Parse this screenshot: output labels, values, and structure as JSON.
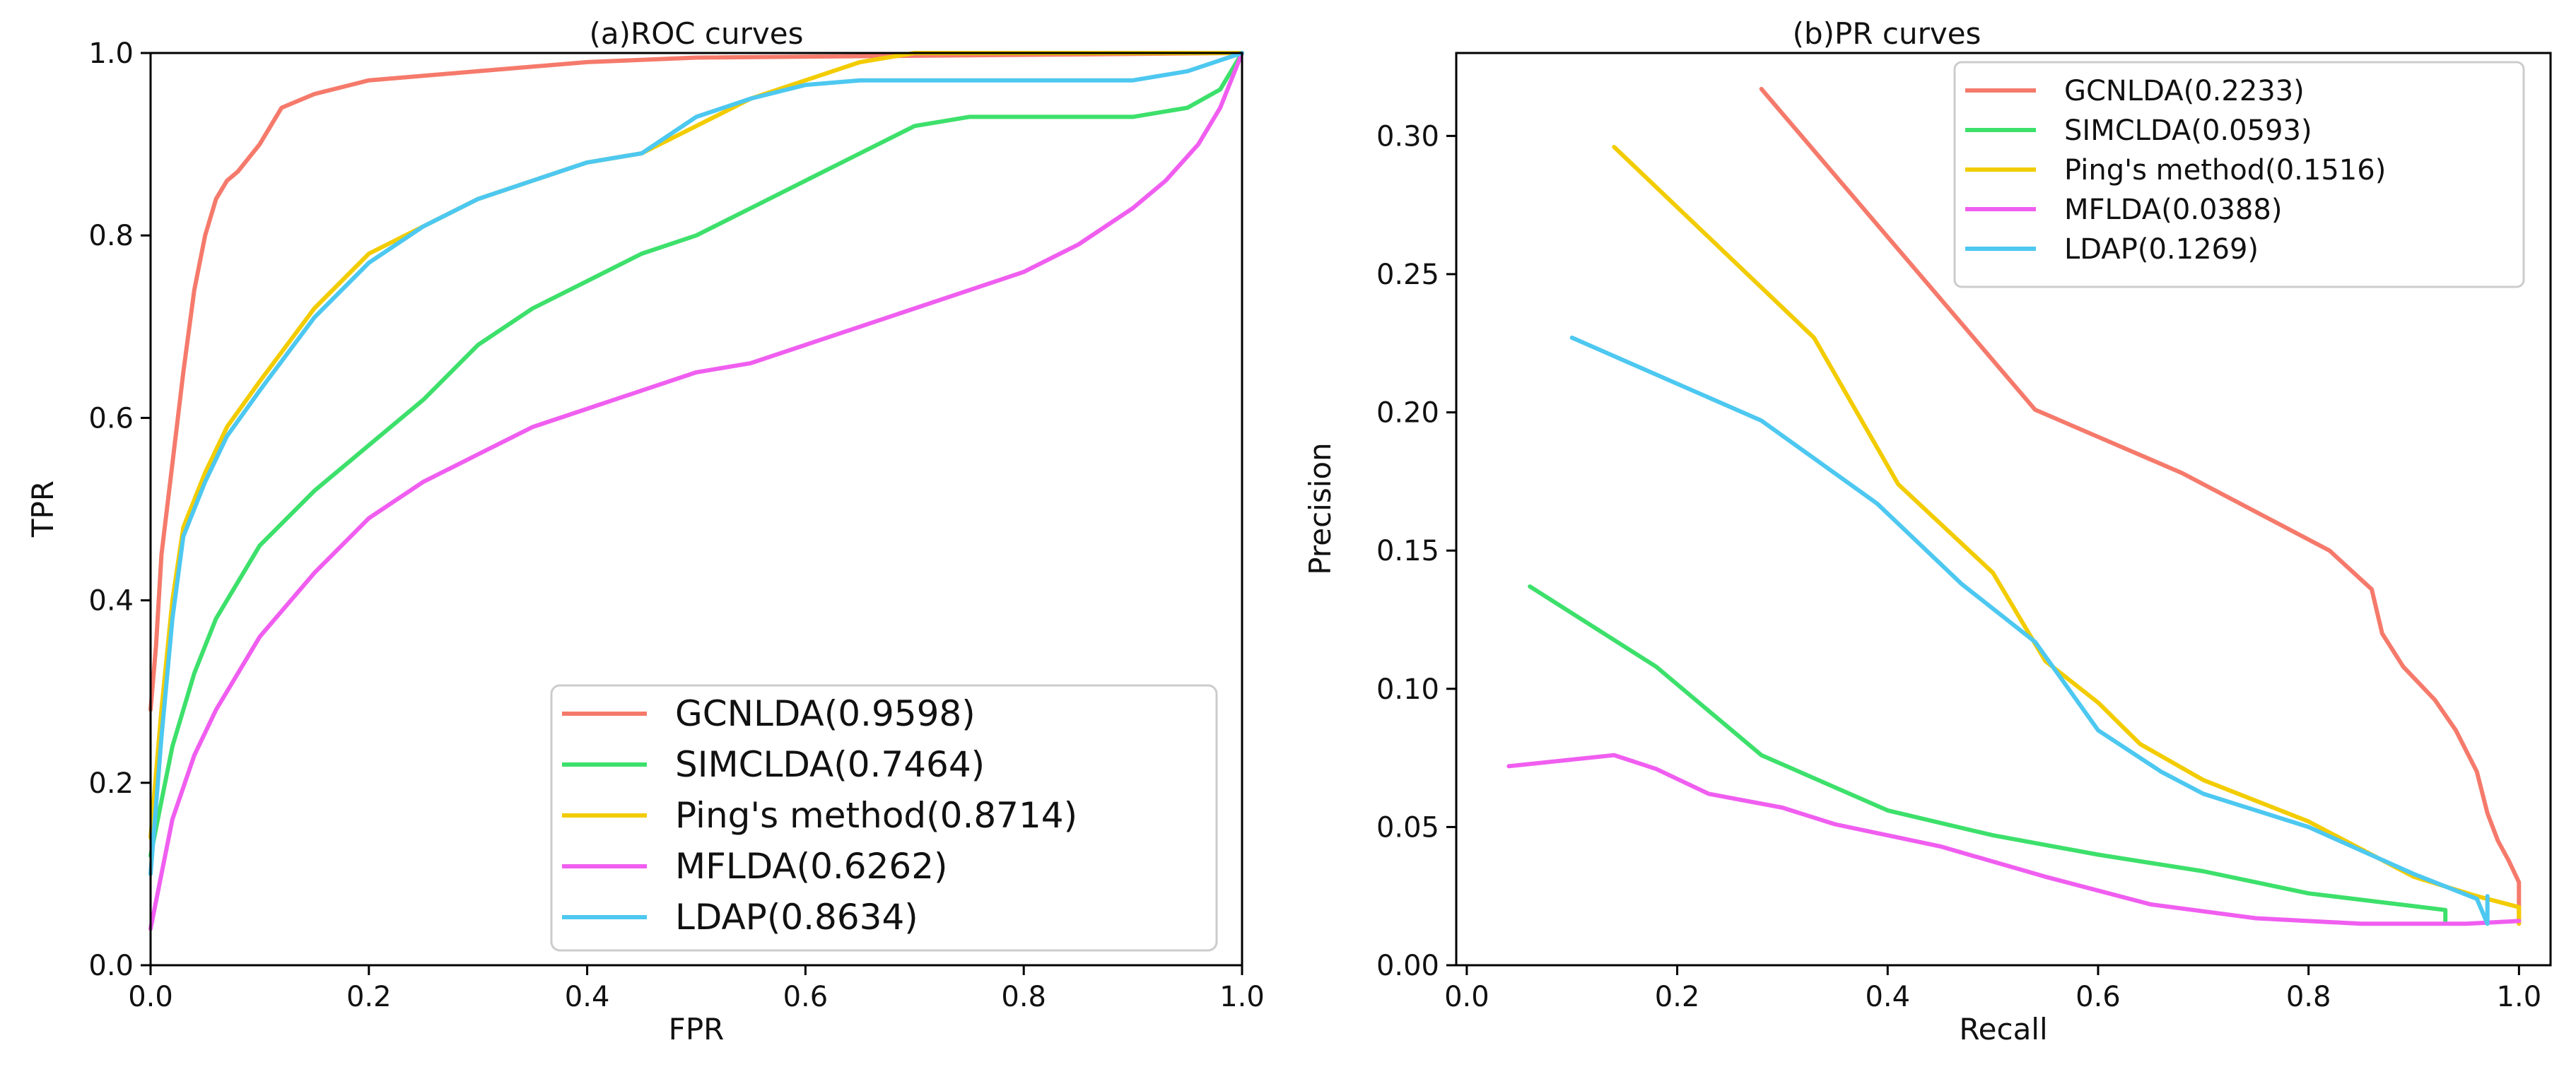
{
  "chart_data": [
    {
      "type": "line",
      "title": "(a)ROC curves",
      "xlabel": "FPR",
      "ylabel": "TPR",
      "xlim": [
        0.0,
        1.0
      ],
      "ylim": [
        0.0,
        1.0
      ],
      "xticks": [
        0.0,
        0.2,
        0.4,
        0.6,
        0.8,
        1.0
      ],
      "yticks": [
        0.0,
        0.2,
        0.4,
        0.6,
        0.8,
        1.0
      ],
      "xtick_labels": [
        "0.0",
        "0.2",
        "0.4",
        "0.6",
        "0.8",
        "1.0"
      ],
      "ytick_labels": [
        "0.0",
        "0.2",
        "0.4",
        "0.6",
        "0.8",
        "1.0"
      ],
      "grid": false,
      "legend_position": "lower-right",
      "series": [
        {
          "name": "GCNLDA(0.9598)",
          "color": "#f57a6b",
          "points": [
            [
              0,
              0.28
            ],
            [
              0.005,
              0.35
            ],
            [
              0.01,
              0.45
            ],
            [
              0.02,
              0.55
            ],
            [
              0.03,
              0.65
            ],
            [
              0.04,
              0.74
            ],
            [
              0.05,
              0.8
            ],
            [
              0.06,
              0.84
            ],
            [
              0.07,
              0.86
            ],
            [
              0.08,
              0.87
            ],
            [
              0.1,
              0.9
            ],
            [
              0.12,
              0.94
            ],
            [
              0.15,
              0.955
            ],
            [
              0.2,
              0.97
            ],
            [
              0.3,
              0.98
            ],
            [
              0.4,
              0.99
            ],
            [
              0.5,
              0.995
            ],
            [
              1.0,
              1.0
            ]
          ]
        },
        {
          "name": "SIMCLDA(0.7464)",
          "color": "#3de06b",
          "points": [
            [
              0,
              0.12
            ],
            [
              0.01,
              0.18
            ],
            [
              0.02,
              0.24
            ],
            [
              0.04,
              0.32
            ],
            [
              0.06,
              0.38
            ],
            [
              0.1,
              0.46
            ],
            [
              0.15,
              0.52
            ],
            [
              0.2,
              0.57
            ],
            [
              0.25,
              0.62
            ],
            [
              0.3,
              0.68
            ],
            [
              0.35,
              0.72
            ],
            [
              0.4,
              0.75
            ],
            [
              0.45,
              0.78
            ],
            [
              0.5,
              0.8
            ],
            [
              0.55,
              0.83
            ],
            [
              0.6,
              0.86
            ],
            [
              0.65,
              0.89
            ],
            [
              0.7,
              0.92
            ],
            [
              0.75,
              0.93
            ],
            [
              0.8,
              0.93
            ],
            [
              0.9,
              0.93
            ],
            [
              0.95,
              0.94
            ],
            [
              0.98,
              0.96
            ],
            [
              1.0,
              1.0
            ]
          ]
        },
        {
          "name": "Ping's method(0.8714)",
          "color": "#f2cc00",
          "points": [
            [
              0,
              0.14
            ],
            [
              0.01,
              0.28
            ],
            [
              0.02,
              0.4
            ],
            [
              0.03,
              0.48
            ],
            [
              0.05,
              0.54
            ],
            [
              0.07,
              0.59
            ],
            [
              0.1,
              0.64
            ],
            [
              0.15,
              0.72
            ],
            [
              0.2,
              0.78
            ],
            [
              0.25,
              0.81
            ],
            [
              0.3,
              0.84
            ],
            [
              0.35,
              0.86
            ],
            [
              0.4,
              0.88
            ],
            [
              0.45,
              0.89
            ],
            [
              0.5,
              0.92
            ],
            [
              0.55,
              0.95
            ],
            [
              0.6,
              0.97
            ],
            [
              0.65,
              0.99
            ],
            [
              0.7,
              1.0
            ],
            [
              1.0,
              1.0
            ]
          ]
        },
        {
          "name": "MFLDA(0.6262)",
          "color": "#f05ef0",
          "points": [
            [
              0,
              0.04
            ],
            [
              0.01,
              0.1
            ],
            [
              0.02,
              0.16
            ],
            [
              0.04,
              0.23
            ],
            [
              0.06,
              0.28
            ],
            [
              0.08,
              0.32
            ],
            [
              0.1,
              0.36
            ],
            [
              0.15,
              0.43
            ],
            [
              0.2,
              0.49
            ],
            [
              0.25,
              0.53
            ],
            [
              0.3,
              0.56
            ],
            [
              0.35,
              0.59
            ],
            [
              0.4,
              0.61
            ],
            [
              0.45,
              0.63
            ],
            [
              0.5,
              0.65
            ],
            [
              0.55,
              0.66
            ],
            [
              0.6,
              0.68
            ],
            [
              0.65,
              0.7
            ],
            [
              0.7,
              0.72
            ],
            [
              0.75,
              0.74
            ],
            [
              0.8,
              0.76
            ],
            [
              0.85,
              0.79
            ],
            [
              0.9,
              0.83
            ],
            [
              0.93,
              0.86
            ],
            [
              0.96,
              0.9
            ],
            [
              0.98,
              0.94
            ],
            [
              1.0,
              1.0
            ]
          ]
        },
        {
          "name": "LDAP(0.8634)",
          "color": "#4dc8f0",
          "points": [
            [
              0,
              0.1
            ],
            [
              0.01,
              0.25
            ],
            [
              0.02,
              0.38
            ],
            [
              0.03,
              0.47
            ],
            [
              0.05,
              0.53
            ],
            [
              0.07,
              0.58
            ],
            [
              0.1,
              0.63
            ],
            [
              0.15,
              0.71
            ],
            [
              0.2,
              0.77
            ],
            [
              0.25,
              0.81
            ],
            [
              0.3,
              0.84
            ],
            [
              0.35,
              0.86
            ],
            [
              0.4,
              0.88
            ],
            [
              0.45,
              0.89
            ],
            [
              0.5,
              0.93
            ],
            [
              0.55,
              0.95
            ],
            [
              0.6,
              0.965
            ],
            [
              0.65,
              0.97
            ],
            [
              0.7,
              0.97
            ],
            [
              0.8,
              0.97
            ],
            [
              0.9,
              0.97
            ],
            [
              0.95,
              0.98
            ],
            [
              1.0,
              1.0
            ]
          ]
        }
      ]
    },
    {
      "type": "line",
      "title": "(b)PR curves",
      "xlabel": "Recall",
      "ylabel": "Precision",
      "xlim": [
        -0.01,
        1.03
      ],
      "ylim": [
        0.0,
        0.33
      ],
      "xticks": [
        0.0,
        0.2,
        0.4,
        0.6,
        0.8,
        1.0
      ],
      "yticks": [
        0.0,
        0.05,
        0.1,
        0.15,
        0.2,
        0.25,
        0.3
      ],
      "xtick_labels": [
        "0.0",
        "0.2",
        "0.4",
        "0.6",
        "0.8",
        "1.0"
      ],
      "ytick_labels": [
        "0.00",
        "0.05",
        "0.10",
        "0.15",
        "0.20",
        "0.25",
        "0.30"
      ],
      "grid": false,
      "legend_position": "upper-right",
      "series": [
        {
          "name": "GCNLDA(0.2233)",
          "color": "#f57a6b",
          "points": [
            [
              0.28,
              0.317
            ],
            [
              0.54,
              0.201
            ],
            [
              0.68,
              0.178
            ],
            [
              0.82,
              0.15
            ],
            [
              0.86,
              0.136
            ],
            [
              0.87,
              0.12
            ],
            [
              0.89,
              0.108
            ],
            [
              0.92,
              0.096
            ],
            [
              0.94,
              0.085
            ],
            [
              0.96,
              0.07
            ],
            [
              0.97,
              0.055
            ],
            [
              0.98,
              0.045
            ],
            [
              0.99,
              0.038
            ],
            [
              1.0,
              0.03
            ],
            [
              1.0,
              0.015
            ]
          ]
        },
        {
          "name": "SIMCLDA(0.0593)",
          "color": "#3de06b",
          "points": [
            [
              0.06,
              0.137
            ],
            [
              0.18,
              0.108
            ],
            [
              0.28,
              0.076
            ],
            [
              0.4,
              0.056
            ],
            [
              0.5,
              0.047
            ],
            [
              0.6,
              0.04
            ],
            [
              0.7,
              0.034
            ],
            [
              0.8,
              0.026
            ],
            [
              0.93,
              0.02
            ],
            [
              0.93,
              0.016
            ]
          ]
        },
        {
          "name": "Ping's method(0.1516)",
          "color": "#f2cc00",
          "points": [
            [
              0.14,
              0.296
            ],
            [
              0.33,
              0.227
            ],
            [
              0.41,
              0.174
            ],
            [
              0.5,
              0.142
            ],
            [
              0.55,
              0.11
            ],
            [
              0.6,
              0.095
            ],
            [
              0.64,
              0.08
            ],
            [
              0.7,
              0.067
            ],
            [
              0.8,
              0.052
            ],
            [
              0.9,
              0.032
            ],
            [
              0.96,
              0.025
            ],
            [
              1.0,
              0.021
            ],
            [
              1.0,
              0.015
            ]
          ]
        },
        {
          "name": "MFLDA(0.0388)",
          "color": "#f05ef0",
          "points": [
            [
              0.04,
              0.072
            ],
            [
              0.14,
              0.076
            ],
            [
              0.18,
              0.071
            ],
            [
              0.23,
              0.062
            ],
            [
              0.3,
              0.057
            ],
            [
              0.35,
              0.051
            ],
            [
              0.45,
              0.043
            ],
            [
              0.55,
              0.032
            ],
            [
              0.65,
              0.022
            ],
            [
              0.75,
              0.017
            ],
            [
              0.85,
              0.015
            ],
            [
              0.95,
              0.015
            ],
            [
              1.0,
              0.016
            ]
          ]
        },
        {
          "name": "LDAP(0.1269)",
          "color": "#4dc8f0",
          "points": [
            [
              0.1,
              0.227
            ],
            [
              0.28,
              0.197
            ],
            [
              0.39,
              0.167
            ],
            [
              0.47,
              0.138
            ],
            [
              0.54,
              0.117
            ],
            [
              0.6,
              0.085
            ],
            [
              0.66,
              0.07
            ],
            [
              0.7,
              0.062
            ],
            [
              0.8,
              0.05
            ],
            [
              0.9,
              0.033
            ],
            [
              0.96,
              0.024
            ],
            [
              0.97,
              0.015
            ],
            [
              0.97,
              0.025
            ]
          ]
        }
      ]
    }
  ]
}
